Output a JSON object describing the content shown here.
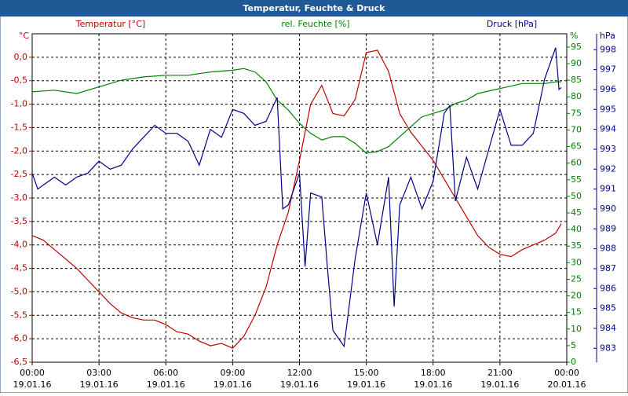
{
  "chart_data": {
    "type": "line",
    "title": "Temperatur, Feuchte & Druck",
    "xlim": [
      0,
      24
    ],
    "xticks": [
      {
        "value": 0,
        "label": "00:00"
      },
      {
        "value": 3,
        "label": "03:00"
      },
      {
        "value": 6,
        "label": "06:00"
      },
      {
        "value": 9,
        "label": "09:00"
      },
      {
        "value": 12,
        "label": "12:00"
      },
      {
        "value": 15,
        "label": "15:00"
      },
      {
        "value": 18,
        "label": "18:00"
      },
      {
        "value": 21,
        "label": "21:00"
      },
      {
        "value": 24,
        "label": "00:00"
      }
    ],
    "xtick_dates": [
      "19.01.16",
      "19.01.16",
      "19.01.16",
      "19.01.16",
      "19.01.16",
      "19.01.16",
      "19.01.16",
      "19.01.16",
      "20.01.16"
    ],
    "y_unit": "°C",
    "y2_unit": "%",
    "y3_unit": "hPa",
    "ylim": [
      -6.5,
      0.5
    ],
    "yticks": [
      {
        "value": 0,
        "label": "0,0"
      },
      {
        "value": -0.5,
        "label": "-0,5"
      },
      {
        "value": -1,
        "label": "-1,0"
      },
      {
        "value": -1.5,
        "label": "-1,5"
      },
      {
        "value": -2,
        "label": "-2,0"
      },
      {
        "value": -2.5,
        "label": "-2,5"
      },
      {
        "value": -3,
        "label": "-3,0"
      },
      {
        "value": -3.5,
        "label": "-3,5"
      },
      {
        "value": -4,
        "label": "-4,0"
      },
      {
        "value": -4.5,
        "label": "-4,5"
      },
      {
        "value": -5,
        "label": "-5,0"
      },
      {
        "value": -5.5,
        "label": "-5,5"
      },
      {
        "value": -6,
        "label": "-6,0"
      },
      {
        "value": -6.5,
        "label": "-6,5"
      }
    ],
    "y2lim": [
      0,
      99
    ],
    "y2ticks": [
      0,
      5,
      10,
      15,
      20,
      25,
      30,
      35,
      40,
      45,
      50,
      55,
      60,
      65,
      70,
      75,
      80,
      85,
      90,
      95
    ],
    "y3lim": [
      982.3,
      998.8
    ],
    "y3ticks": [
      983,
      984,
      985,
      986,
      987,
      988,
      989,
      990,
      991,
      992,
      993,
      994,
      995,
      996,
      997,
      998
    ],
    "grid": true,
    "series": [
      {
        "name": "Temperatur [°C]",
        "color": "#c00000",
        "axis": "y",
        "x": [
          0,
          0.5,
          1,
          1.5,
          2,
          2.5,
          3,
          3.5,
          4,
          4.5,
          5,
          5.5,
          6,
          6.5,
          7,
          7.5,
          8,
          8.5,
          9,
          9.5,
          10,
          10.5,
          11,
          11.5,
          12,
          12.5,
          13,
          13.5,
          14,
          14.5,
          15,
          15.5,
          16,
          16.5,
          17,
          17.5,
          18,
          18.5,
          19,
          19.5,
          20,
          20.5,
          21,
          21.5,
          22,
          22.5,
          23,
          23.5,
          23.75
        ],
        "values": [
          -3.8,
          -3.9,
          -4.1,
          -4.3,
          -4.5,
          -4.75,
          -5.0,
          -5.25,
          -5.45,
          -5.55,
          -5.6,
          -5.6,
          -5.7,
          -5.85,
          -5.9,
          -6.05,
          -6.15,
          -6.1,
          -6.2,
          -5.95,
          -5.5,
          -4.9,
          -4.0,
          -3.3,
          -2.2,
          -1.0,
          -0.6,
          -1.2,
          -1.25,
          -0.9,
          0.1,
          0.15,
          -0.3,
          -1.2,
          -1.6,
          -1.9,
          -2.2,
          -2.6,
          -3.0,
          -3.4,
          -3.8,
          -4.05,
          -4.2,
          -4.25,
          -4.1,
          -4.0,
          -3.9,
          -3.75,
          -3.55
        ]
      },
      {
        "name": "rel. Feuchte [%]",
        "color": "#008000",
        "axis": "y2",
        "x": [
          0,
          1,
          2,
          3,
          4,
          5,
          6,
          7,
          8,
          9,
          9.5,
          10,
          10.5,
          11,
          11.5,
          12,
          12.5,
          13,
          13.5,
          14,
          14.5,
          15,
          15.5,
          16,
          16.5,
          17,
          17.5,
          18,
          18.5,
          19,
          19.5,
          20,
          21,
          22,
          23,
          23.5,
          23.75
        ],
        "values": [
          81.5,
          82,
          81,
          83,
          85,
          86,
          86.5,
          86.5,
          87.5,
          88,
          88.5,
          87.5,
          84.5,
          79,
          76,
          72,
          69,
          67,
          68,
          68,
          66,
          63,
          63.5,
          65,
          68,
          71,
          74,
          75,
          76,
          78,
          79,
          81,
          82.5,
          84,
          84,
          84.5,
          84.5
        ]
      },
      {
        "name": "Druck [hPa]",
        "color": "#00008b",
        "axis": "y3",
        "x": [
          0,
          0.25,
          0.5,
          1,
          1.5,
          2,
          2.5,
          3,
          3.5,
          4,
          4.5,
          5,
          5.5,
          6,
          6.5,
          7,
          7.5,
          8,
          8.5,
          9,
          9.5,
          10,
          10.5,
          11,
          11.25,
          11.5,
          12,
          12.25,
          12.5,
          13,
          13.25,
          13.5,
          14,
          14.5,
          15,
          15.5,
          16,
          16.25,
          16.5,
          17,
          17.5,
          18,
          18.5,
          18.75,
          19,
          19.5,
          20,
          20.5,
          21,
          21.5,
          22,
          22.5,
          23,
          23.5,
          23.65,
          23.75
        ],
        "values": [
          991.8,
          991.0,
          991.2,
          991.6,
          991.2,
          991.6,
          991.8,
          992.4,
          992.0,
          992.2,
          993.0,
          993.6,
          994.2,
          993.8,
          993.8,
          993.4,
          992.2,
          994.0,
          993.6,
          995.0,
          994.8,
          994.2,
          994.4,
          995.6,
          990.0,
          990.2,
          991.8,
          987.1,
          990.8,
          990.6,
          987.1,
          983.9,
          983.1,
          987.5,
          990.8,
          988.2,
          991.6,
          985.1,
          990.2,
          991.6,
          990.0,
          991.4,
          994.8,
          995.2,
          990.4,
          992.6,
          991.0,
          993.0,
          995.0,
          993.2,
          993.2,
          993.8,
          996.5,
          998.1,
          996.0,
          996.1
        ]
      }
    ]
  }
}
